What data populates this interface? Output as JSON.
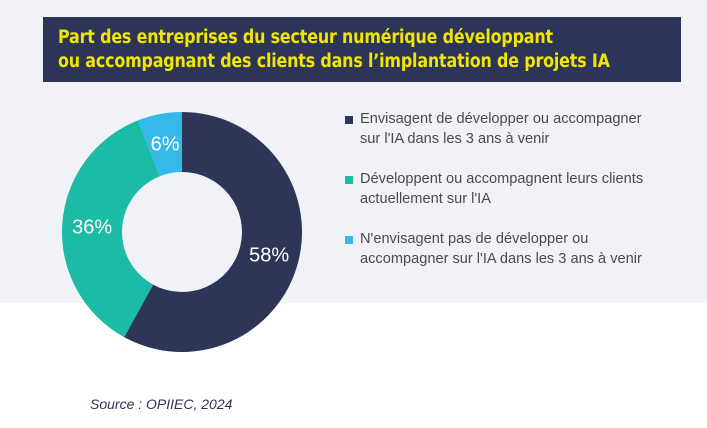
{
  "chart_data": {
    "type": "pie",
    "donut": true,
    "title": "Part des entreprises du secteur numérique développant ou accompagnant des clients dans l’implantation de projets IA",
    "title_lines": [
      "Part des entreprises du secteur numérique développant",
      "ou accompagnant des clients dans l’implantation de projets IA"
    ],
    "categories": [
      "Envisagent de développer ou accompagner sur l'IA dans les 3 ans à venir",
      "Développent ou accompagnent leurs clients actuellement sur l'IA",
      "N'envisagent pas de développer ou accompagner sur l'IA dans les 3 ans à venir"
    ],
    "values": [
      58,
      36,
      6
    ],
    "data_labels": [
      "58%",
      "36%",
      "6%"
    ],
    "colors": [
      "#2e3657",
      "#1bbba6",
      "#35b9e8"
    ],
    "legend_position": "right",
    "source": "Source : OPIIEC, 2024"
  }
}
